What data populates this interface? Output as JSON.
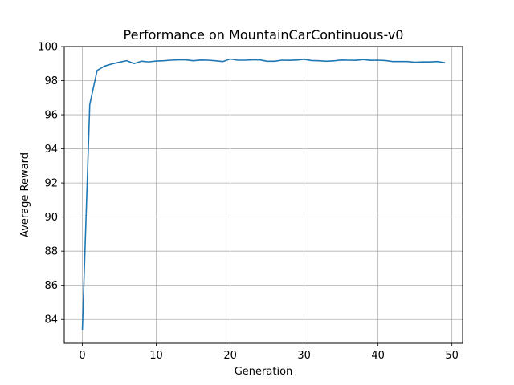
{
  "chart_data": {
    "type": "line",
    "title": "Performance on MountainCarContinuous-v0",
    "xlabel": "Generation",
    "ylabel": "Average Reward",
    "xlim": [
      -2.45,
      51.45
    ],
    "ylim": [
      82.6,
      100.0
    ],
    "xticks": [
      0,
      10,
      20,
      30,
      40,
      50
    ],
    "yticks": [
      84,
      86,
      88,
      90,
      92,
      94,
      96,
      98,
      100
    ],
    "grid": true,
    "line_color": "#1f77b4",
    "series": [
      {
        "x": [
          0,
          1,
          2,
          3,
          4,
          5,
          6,
          7,
          8,
          9,
          10,
          11,
          12,
          13,
          14,
          15,
          16,
          17,
          18,
          19,
          20,
          21,
          22,
          23,
          24,
          25,
          26,
          27,
          28,
          29,
          30,
          31,
          32,
          33,
          34,
          35,
          36,
          37,
          38,
          39,
          40,
          41,
          42,
          43,
          44,
          45,
          46,
          47,
          48,
          49
        ],
        "values": [
          83.4,
          96.6,
          98.6,
          98.85,
          98.98,
          99.08,
          99.17,
          99.0,
          99.14,
          99.1,
          99.15,
          99.17,
          99.2,
          99.22,
          99.22,
          99.17,
          99.21,
          99.2,
          99.17,
          99.12,
          99.27,
          99.2,
          99.2,
          99.22,
          99.22,
          99.14,
          99.14,
          99.2,
          99.19,
          99.21,
          99.25,
          99.18,
          99.17,
          99.14,
          99.16,
          99.21,
          99.2,
          99.19,
          99.24,
          99.19,
          99.2,
          99.18,
          99.12,
          99.12,
          99.12,
          99.08,
          99.1,
          99.1,
          99.12,
          99.06
        ]
      }
    ]
  }
}
